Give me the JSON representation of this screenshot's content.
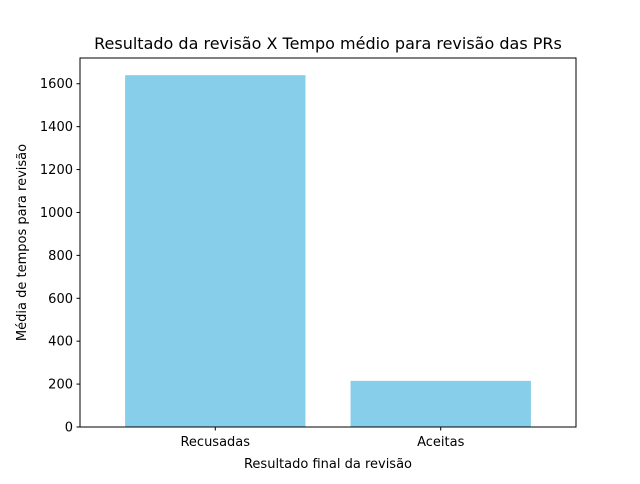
{
  "chart_data": {
    "type": "bar",
    "title": "Resultado da revisão X Tempo médio para revisão das PRs",
    "xlabel": "Resultado final da revisão",
    "ylabel": "Média de tempos para revisão",
    "categories": [
      "Recusadas",
      "Aceitas"
    ],
    "values": [
      1640,
      215
    ],
    "ylim": [
      0,
      1720
    ],
    "yticks": [
      0,
      200,
      400,
      600,
      800,
      1000,
      1200,
      1400,
      1600
    ],
    "grid": false,
    "legend": "none",
    "colors": {
      "bar": "#87ceeb",
      "axis": "#000000",
      "background": "#ffffff"
    }
  }
}
